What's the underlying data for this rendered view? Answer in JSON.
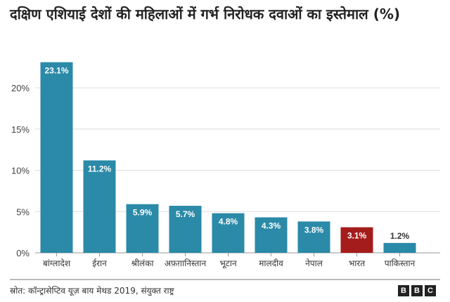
{
  "chart_data": {
    "type": "bar",
    "title": "दक्षिण एशियाई देशों की महिलाओं में गर्भ निरोधक दवाओं का इस्तेमाल (%)",
    "categories": [
      "बांग्लादेश",
      "ईरान",
      "श्रीलंका",
      "अफ़ग़ानिस्तान",
      "भूटान",
      "मालदीव",
      "नेपाल",
      "भारत",
      "पाकिस्तान"
    ],
    "values": [
      23.1,
      11.2,
      5.9,
      5.7,
      4.8,
      4.3,
      3.8,
      3.1,
      1.2
    ],
    "data_labels": [
      "23.1%",
      "11.2%",
      "5.9%",
      "5.7%",
      "4.8%",
      "4.3%",
      "3.8%",
      "3.1%",
      "1.2%"
    ],
    "ylim": [
      0,
      20
    ],
    "yticks": [
      0,
      5,
      10,
      15,
      20
    ],
    "ytick_labels": [
      "0%",
      "5%",
      "10%",
      "15%",
      "20%"
    ],
    "xlabel": "",
    "ylabel": "",
    "grid": true,
    "colors": {
      "default": "#2a8aa8",
      "highlight": "#a51c1c",
      "highlight_category": "भारत"
    }
  },
  "footer": {
    "source": "स्रोत: कॉन्ट्रासेप्टिव यूज़ बाय मेथड 2019, संयुक्त राष्ट्र",
    "logo": "BBC"
  }
}
